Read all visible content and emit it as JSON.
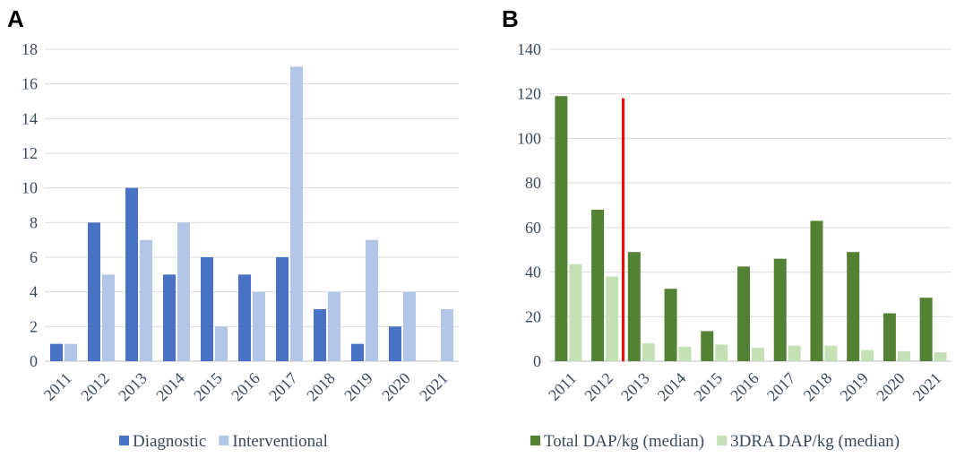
{
  "chart_data": [
    {
      "panel": "A",
      "type": "bar",
      "categories": [
        "2011",
        "2012",
        "2013",
        "2014",
        "2015",
        "2016",
        "2017",
        "2018",
        "2019",
        "2020",
        "2021"
      ],
      "series": [
        {
          "name": "Diagnostic",
          "values": [
            1,
            8,
            10,
            5,
            6,
            5,
            6,
            3,
            1,
            2,
            0
          ],
          "color": "#4a72c4"
        },
        {
          "name": "Interventional",
          "values": [
            1,
            5,
            7,
            8,
            2,
            4,
            17,
            4,
            7,
            4,
            3
          ],
          "color": "#b4c6e7"
        }
      ],
      "ylim": [
        0,
        18
      ],
      "yticks": [
        "0",
        "2",
        "4",
        "6",
        "8",
        "10",
        "12",
        "14",
        "16",
        "18"
      ],
      "grid": true,
      "legend": "bottom"
    },
    {
      "panel": "B",
      "type": "bar",
      "categories": [
        "2011",
        "2012",
        "2013",
        "2014",
        "2015",
        "2016",
        "2017",
        "2018",
        "2019",
        "2020",
        "2021"
      ],
      "series": [
        {
          "name": "Total DAP/kg (median)",
          "values": [
            119,
            68,
            49,
            32.5,
            13.5,
            42.5,
            46,
            63,
            49,
            21.5,
            28.5
          ],
          "color": "#548235"
        },
        {
          "name": "3DRA DAP/kg (median)",
          "values": [
            43.5,
            38,
            8,
            6.5,
            7.5,
            6,
            7,
            7,
            5,
            4.5,
            4
          ],
          "color": "#c5e0b4"
        }
      ],
      "ylim": [
        0,
        140
      ],
      "yticks": [
        "0",
        "20",
        "40",
        "60",
        "80",
        "100",
        "120",
        "140"
      ],
      "grid": true,
      "legend": "bottom",
      "marker_line": {
        "between": [
          "2012",
          "2013"
        ],
        "value_top": 118,
        "color": "#ff0000"
      }
    }
  ]
}
